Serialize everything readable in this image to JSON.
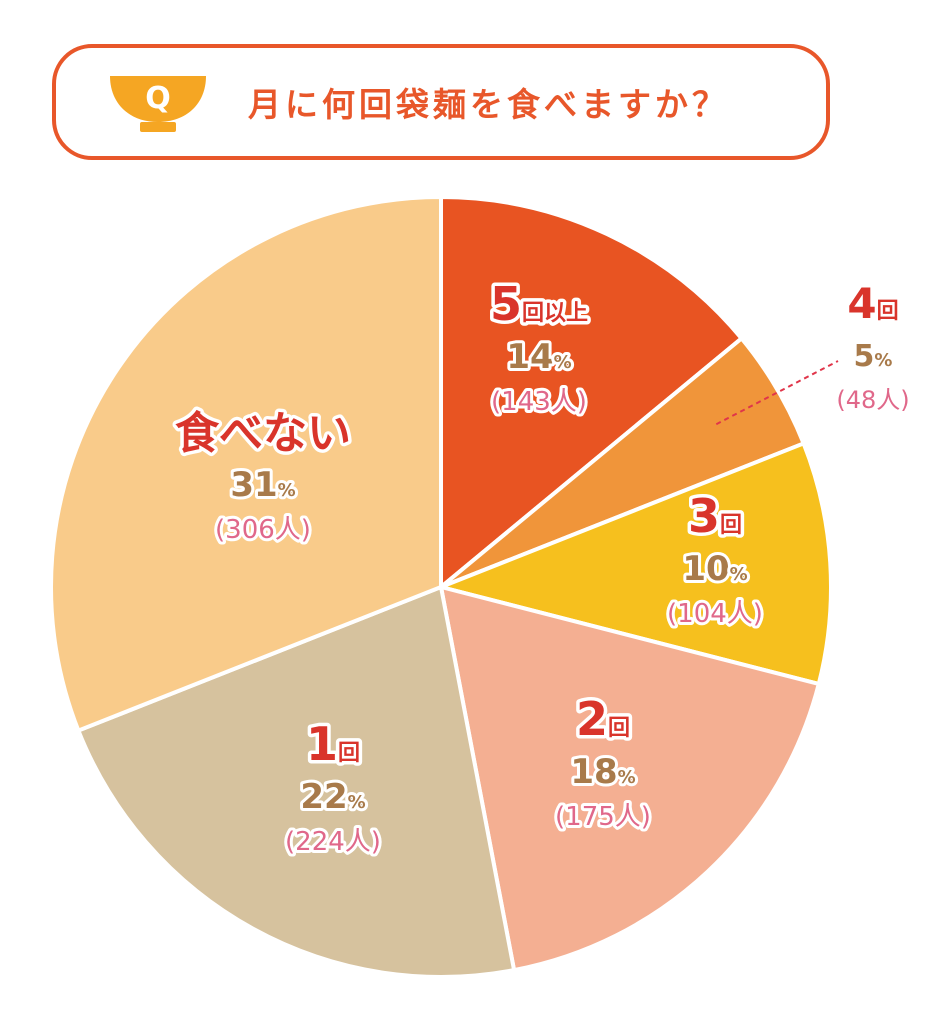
{
  "header": {
    "q_icon": "rice-bowl-icon",
    "q_letter": "Q",
    "question": "月に何回袋麺を食べますか？"
  },
  "chart_data": {
    "type": "pie",
    "categories": [
      "5回以上",
      "4回",
      "3回",
      "2回",
      "1回",
      "食べない"
    ],
    "values": [
      14,
      5,
      10,
      18,
      22,
      31
    ],
    "counts": [
      143,
      48,
      104,
      175,
      224,
      306
    ],
    "slices": [
      {
        "name_num": "5",
        "name_unit": "回以上",
        "pct": "14",
        "pct_unit": "%",
        "count": "(143人)",
        "color": "#e85422"
      },
      {
        "name_num": "4",
        "name_unit": "回",
        "pct": "5",
        "pct_unit": "%",
        "count": "(48人)",
        "color": "#f0953a"
      },
      {
        "name_num": "3",
        "name_unit": "回",
        "pct": "10",
        "pct_unit": "%",
        "count": "(104人)",
        "color": "#f6c01e"
      },
      {
        "name_num": "2",
        "name_unit": "回",
        "pct": "18",
        "pct_unit": "%",
        "count": "(175人)",
        "color": "#f4af92"
      },
      {
        "name_num": "1",
        "name_unit": "回",
        "pct": "22",
        "pct_unit": "%",
        "count": "(224人)",
        "color": "#d6c29e"
      },
      {
        "name_num": "",
        "name_unit": "食べない",
        "pct": "31",
        "pct_unit": "%",
        "count": "(306人)",
        "color": "#f9cb8a"
      }
    ],
    "start_angle_deg": 0,
    "direction": "clockwise"
  }
}
